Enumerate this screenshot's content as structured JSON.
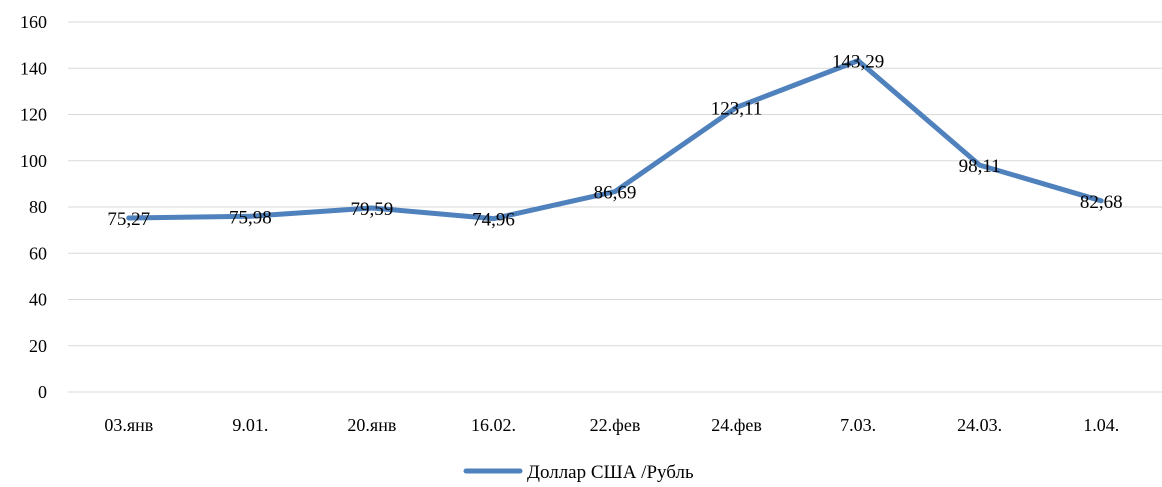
{
  "chart_data": {
    "type": "line",
    "categories": [
      "03.янв",
      "9.01.",
      "20.янв",
      "16.02.",
      "22.фев",
      "24.фев",
      "7.03.",
      "24.03.",
      "1.04."
    ],
    "series": [
      {
        "name": "Доллар США /Рубль",
        "values": [
          75.27,
          75.98,
          79.59,
          74.96,
          86.69,
          123.11,
          143.29,
          98.11,
          82.68
        ],
        "labels": [
          "75,27",
          "75,98",
          "79,59",
          "74,96",
          "86,69",
          "123,11",
          "143,29",
          "98,11",
          "82,68"
        ],
        "color": "#4f81bd"
      }
    ],
    "ylim": [
      0,
      160
    ],
    "yticks": [
      "0",
      "20",
      "40",
      "60",
      "80",
      "100",
      "120",
      "140",
      "160"
    ],
    "grid": true,
    "legend": "bottom"
  }
}
